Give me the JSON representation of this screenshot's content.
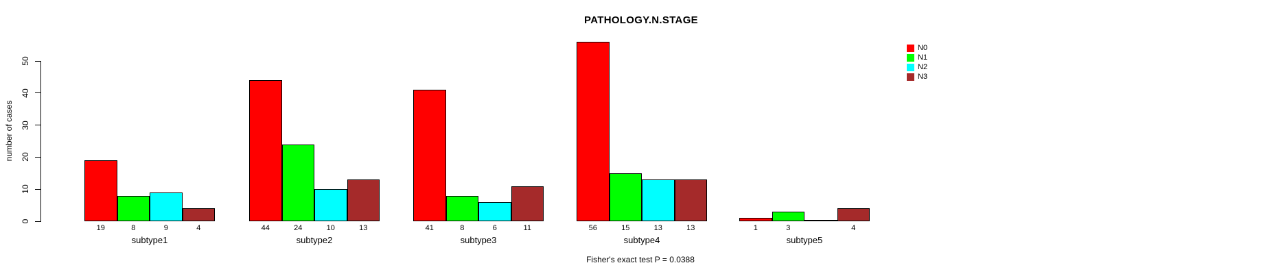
{
  "chart_data": {
    "type": "bar",
    "title": "PATHOLOGY.N.STAGE",
    "ylabel": "number of cases",
    "xlabel": "",
    "categories": [
      "subtype1",
      "subtype2",
      "subtype3",
      "subtype4",
      "subtype5"
    ],
    "series": [
      {
        "name": "N0",
        "color": "#FF0000",
        "values": [
          19,
          44,
          41,
          56,
          1
        ]
      },
      {
        "name": "N1",
        "color": "#00FF00",
        "values": [
          8,
          24,
          8,
          15,
          3
        ]
      },
      {
        "name": "N2",
        "color": "#00FFFF",
        "values": [
          9,
          10,
          6,
          13,
          0
        ]
      },
      {
        "name": "N3",
        "color": "#A52A2A",
        "values": [
          4,
          13,
          11,
          13,
          4
        ]
      }
    ],
    "yticks": [
      0,
      10,
      20,
      30,
      40,
      50
    ],
    "ylim": [
      0,
      56
    ],
    "grid": false,
    "legend_position": "top-right",
    "bar_value_labels_shown": true,
    "zero_value_labels_hidden": true,
    "annotation": "Fisher's exact test P = 0.0388"
  }
}
